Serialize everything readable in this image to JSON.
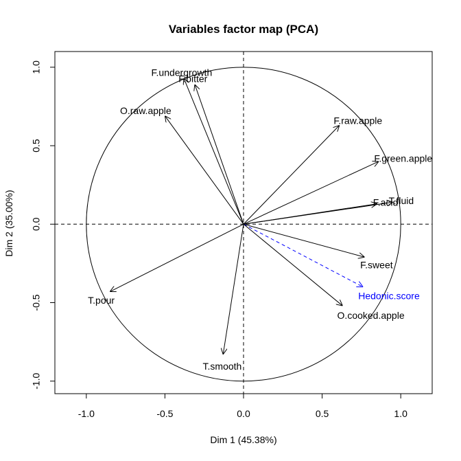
{
  "chart_data": {
    "type": "scatter",
    "title": "Variables factor map (PCA)",
    "xlabel": "Dim 1 (45.38%)",
    "ylabel": "Dim 2 (35.00%)",
    "xlim": [
      -1.2,
      1.2
    ],
    "ylim": [
      -1.08,
      1.1
    ],
    "x_ticks": [
      -1.0,
      -0.5,
      0.0,
      0.5,
      1.0
    ],
    "y_ticks": [
      -1.0,
      -0.5,
      0.0,
      0.5,
      1.0
    ],
    "x_tick_labels": [
      "-1.0",
      "-0.5",
      "0.0",
      "0.5",
      "1.0"
    ],
    "y_tick_labels": [
      "-1.0",
      "-0.5",
      "0.0",
      "0.5",
      "1.0"
    ],
    "unit_circle": true,
    "reference_lines": [
      0,
      0
    ],
    "colors": {
      "active": "#000000",
      "supplementary": "#0000ff"
    },
    "variables": [
      {
        "label": "F.undergrowth",
        "x": -0.38,
        "y": 0.93,
        "supplementary": false
      },
      {
        "label": "F.bitter",
        "x": -0.31,
        "y": 0.89,
        "supplementary": false
      },
      {
        "label": "O.raw.apple",
        "x": -0.5,
        "y": 0.69,
        "supplementary": false
      },
      {
        "label": "F.raw.apple",
        "x": 0.61,
        "y": 0.63,
        "supplementary": false
      },
      {
        "label": "F.green.apple",
        "x": 0.86,
        "y": 0.4,
        "supplementary": false
      },
      {
        "label": "F.acid",
        "x": 0.85,
        "y": 0.13,
        "supplementary": false
      },
      {
        "label": "T.fluid",
        "x": 0.95,
        "y": 0.14,
        "supplementary": false
      },
      {
        "label": "F.sweet",
        "x": 0.77,
        "y": -0.21,
        "supplementary": false
      },
      {
        "label": "Hedonic.score",
        "x": 0.76,
        "y": -0.4,
        "supplementary": true
      },
      {
        "label": "O.cooked.apple",
        "x": 0.63,
        "y": -0.52,
        "supplementary": false
      },
      {
        "label": "T.smooth",
        "x": -0.13,
        "y": -0.83,
        "supplementary": false
      },
      {
        "label": "T.pour",
        "x": -0.85,
        "y": -0.43,
        "supplementary": false
      }
    ]
  }
}
